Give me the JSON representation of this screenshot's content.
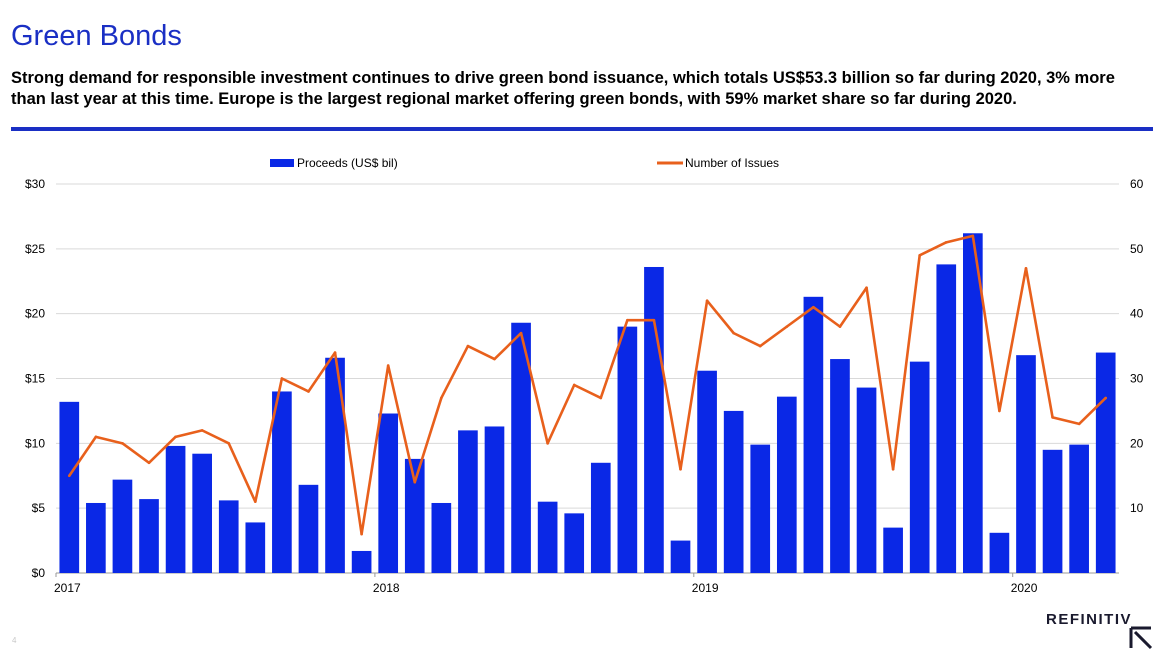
{
  "header": {
    "title": "Green Bonds",
    "subtitle": "Strong demand for responsible investment continues to drive green bond issuance, which totals US$53.3 billion so far during 2020, 3% more than last year at this time. Europe is the largest regional market offering green bonds, with 59% market share so far during 2020."
  },
  "colors": {
    "bars": "#0a28e6",
    "line": "#e8601c",
    "accent": "#1a2fc4"
  },
  "footer": {
    "page_number": "4",
    "brand": "REFINITIV"
  },
  "chart_data": {
    "type": "bar+line",
    "title": "",
    "categories": [
      "2017-01",
      "2017-02",
      "2017-03",
      "2017-04",
      "2017-05",
      "2017-06",
      "2017-07",
      "2017-08",
      "2017-09",
      "2017-10",
      "2017-11",
      "2017-12",
      "2018-01",
      "2018-02",
      "2018-03",
      "2018-04",
      "2018-05",
      "2018-06",
      "2018-07",
      "2018-08",
      "2018-09",
      "2018-10",
      "2018-11",
      "2018-12",
      "2019-01",
      "2019-02",
      "2019-03",
      "2019-04",
      "2019-05",
      "2019-06",
      "2019-07",
      "2019-08",
      "2019-09",
      "2019-10",
      "2019-11",
      "2019-12",
      "2020-01",
      "2020-02",
      "2020-03",
      "2020-04"
    ],
    "x_tick_labels": [
      {
        "label": "2017",
        "index": 0
      },
      {
        "label": "2018",
        "index": 12
      },
      {
        "label": "2019",
        "index": 24
      },
      {
        "label": "2020",
        "index": 36
      }
    ],
    "series": [
      {
        "name": "Proceeds (US$ bil)",
        "type": "bar",
        "axis": "left",
        "values": [
          13.2,
          5.4,
          7.2,
          5.7,
          9.8,
          9.2,
          5.6,
          3.9,
          14.0,
          6.8,
          16.6,
          1.7,
          12.3,
          8.8,
          5.4,
          11.0,
          11.3,
          19.3,
          5.5,
          4.6,
          8.5,
          19.0,
          23.6,
          2.5,
          15.6,
          12.5,
          9.9,
          13.6,
          21.3,
          16.5,
          14.3,
          3.5,
          16.3,
          23.8,
          26.2,
          3.1,
          16.8,
          9.5,
          9.9,
          17.0
        ]
      },
      {
        "name": "Number of Issues",
        "type": "line",
        "axis": "right",
        "values": [
          15,
          21,
          20,
          17,
          21,
          22,
          20,
          11,
          30,
          28,
          34,
          6,
          32,
          14,
          27,
          35,
          33,
          37,
          20,
          29,
          27,
          39,
          39,
          16,
          42,
          37,
          35,
          38,
          41,
          38,
          44,
          16,
          49,
          51,
          52,
          25,
          47,
          24,
          23,
          27
        ]
      }
    ],
    "y_left": {
      "min": 0,
      "max": 30,
      "ticks": [
        "$0",
        "$5",
        "$10",
        "$15",
        "$20",
        "$25",
        "$30"
      ]
    },
    "y_right": {
      "min": 0,
      "max": 60,
      "ticks": [
        "",
        "10",
        "20",
        "30",
        "40",
        "50",
        "60"
      ]
    },
    "legend_position": "top",
    "grid": true
  }
}
